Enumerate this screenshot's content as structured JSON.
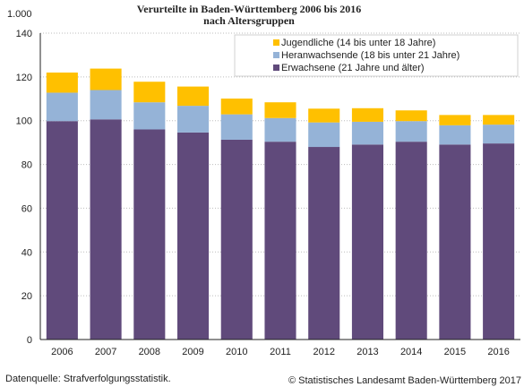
{
  "title_line1": "Verurteilte in Baden-Württemberg 2006 bis 2016",
  "title_line2": "nach Altersgruppen",
  "unit_label": "1.000",
  "footer_left": "Datenquelle: Strafverfolgungsstatistik.",
  "footer_right": "© Statistisches Landesamt Baden-Württemberg 2017",
  "chart_data": {
    "type": "bar",
    "stacked": true,
    "categories": [
      "2006",
      "2007",
      "2008",
      "2009",
      "2010",
      "2011",
      "2012",
      "2013",
      "2014",
      "2015",
      "2016"
    ],
    "series": [
      {
        "name": "Erwachsene (21 Jahre und älter)",
        "color": "#604a7b",
        "values": [
          99.8,
          100.6,
          96.0,
          94.6,
          91.3,
          90.4,
          88.0,
          89.1,
          90.4,
          89.1,
          89.6
        ]
      },
      {
        "name": "Heranwachsende (18 bis unter 21 Jahre)",
        "color": "#95b3d7",
        "values": [
          13.0,
          13.4,
          12.4,
          12.2,
          11.6,
          10.8,
          11.2,
          10.4,
          9.4,
          8.8,
          8.6
        ]
      },
      {
        "name": "Jugendliche (14 bis unter 18 Jahre)",
        "color": "#ffc000",
        "values": [
          9.2,
          9.8,
          9.4,
          8.8,
          7.2,
          7.2,
          6.3,
          6.2,
          4.9,
          4.7,
          4.4
        ]
      }
    ],
    "legend_order": [
      2,
      1,
      0
    ],
    "legend_position": "top-right",
    "ylim": [
      0,
      140
    ],
    "yticks": [
      0,
      20,
      40,
      60,
      80,
      100,
      120,
      140
    ],
    "ytick_labels": [
      "0",
      "20",
      "40",
      "60",
      "80",
      "100",
      "120",
      "140"
    ],
    "grid": true
  }
}
